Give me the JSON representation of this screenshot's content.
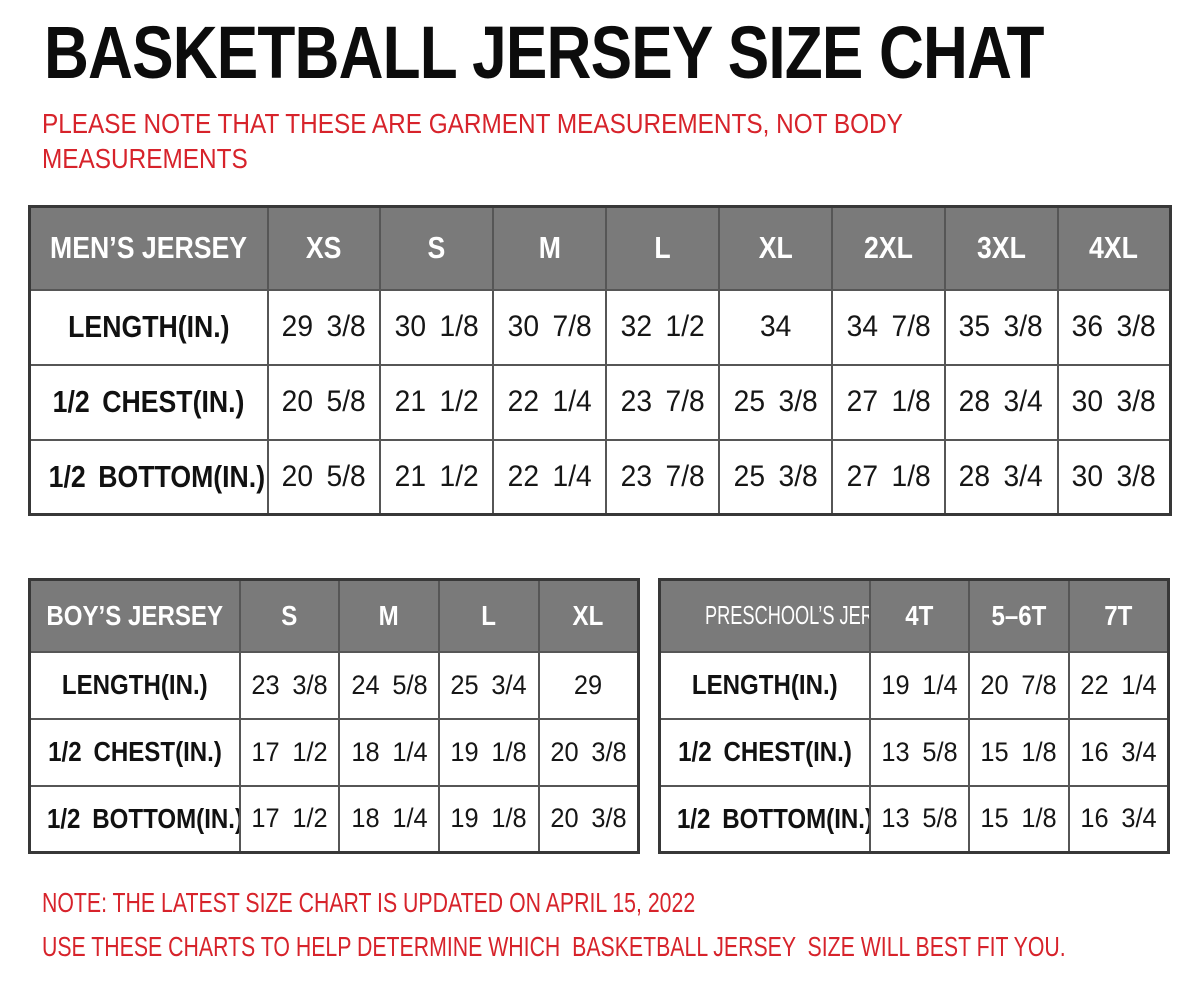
{
  "title": "BASKETBALL JERSEY SIZE CHAT",
  "top_note": "PLEASE NOTE THAT THESE ARE GARMENT MEASUREMENTS, NOT BODY MEASUREMENTS",
  "colors": {
    "accent_red": "#d7232b",
    "header_gray": "#7a7a7a",
    "grid_line": "#565656",
    "outer_border": "#383838"
  },
  "tables": {
    "men": {
      "name": "MEN’S JERSEY",
      "sizes": [
        "XS",
        "S",
        "M",
        "L",
        "XL",
        "2XL",
        "3XL",
        "4XL"
      ],
      "rows": [
        {
          "label": "LENGTH(IN.)",
          "values": [
            "29 3/8",
            "30 1/8",
            "30 7/8",
            "32 1/2",
            "34",
            "34 7/8",
            "35 3/8",
            "36 3/8"
          ]
        },
        {
          "label": "1/2 CHEST(IN.)",
          "values": [
            "20 5/8",
            "21 1/2",
            "22 1/4",
            "23 7/8",
            "25 3/8",
            "27 1/8",
            "28 3/4",
            "30 3/8"
          ]
        },
        {
          "label": "1/2 BOTTOM(IN.)",
          "values": [
            "20 5/8",
            "21 1/2",
            "22 1/4",
            "23 7/8",
            "25 3/8",
            "27 1/8",
            "28 3/4",
            "30 3/8"
          ]
        }
      ]
    },
    "boys": {
      "name": "BOY’S JERSEY",
      "sizes": [
        "S",
        "M",
        "L",
        "XL"
      ],
      "rows": [
        {
          "label": "LENGTH(IN.)",
          "values": [
            "23 3/8",
            "24 5/8",
            "25 3/4",
            "29"
          ]
        },
        {
          "label": "1/2 CHEST(IN.)",
          "values": [
            "17 1/2",
            "18 1/4",
            "19 1/8",
            "20 3/8"
          ]
        },
        {
          "label": "1/2 BOTTOM(IN.)",
          "values": [
            "17 1/2",
            "18 1/4",
            "19 1/8",
            "20 3/8"
          ]
        }
      ]
    },
    "preschool": {
      "name": "PRESCHOOL’S JERSEY",
      "sizes": [
        "4T",
        "5–6T",
        "7T"
      ],
      "rows": [
        {
          "label": "LENGTH(IN.)",
          "values": [
            "19 1/4",
            "20 7/8",
            "22 1/4"
          ]
        },
        {
          "label": "1/2 CHEST(IN.)",
          "values": [
            "13 5/8",
            "15 1/8",
            "16 3/4"
          ]
        },
        {
          "label": "1/2 BOTTOM(IN.)",
          "values": [
            "13 5/8",
            "15 1/8",
            "16 3/4"
          ]
        }
      ]
    }
  },
  "footer_notes": {
    "line1": "NOTE: THE LATEST SIZE CHART IS UPDATED ON APRIL 15, 2022",
    "line2": "USE THESE CHARTS TO HELP DETERMINE WHICH  BASKETBALL JERSEY  SIZE WILL BEST FIT YOU."
  }
}
